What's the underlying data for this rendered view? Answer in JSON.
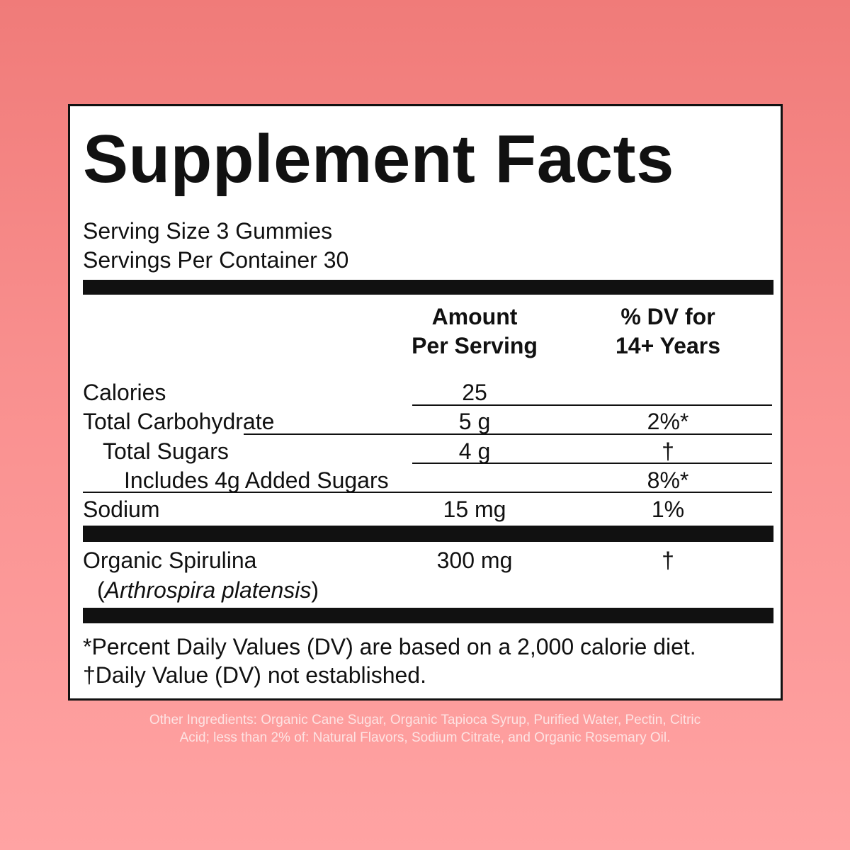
{
  "title": "Supplement Facts",
  "serving": [
    "Serving Size 3 Gummies",
    "Servings Per Container 30"
  ],
  "columns": {
    "amount": [
      "Amount",
      "Per Serving"
    ],
    "dv": [
      "% DV for",
      "14+ Years"
    ]
  },
  "rows": [
    {
      "name": "Calories",
      "amount": "25"
    },
    {
      "name": "Total Carbohydrate",
      "amount": "5 g",
      "dv": "2%*"
    },
    {
      "name": "Total Sugars",
      "amount": "4 g",
      "dv": "†"
    },
    {
      "name": "Includes 4g Added Sugars",
      "dv": "8%*"
    },
    {
      "name": "Sodium",
      "amount": "15 mg",
      "dv": "1%"
    }
  ],
  "ingredient": {
    "name": "Organic Spirulina",
    "source": [
      "(",
      "Arthrospira platensis",
      ")"
    ],
    "amount": "300 mg",
    "dv": "†"
  },
  "footnotes": [
    "*Percent Daily Values (DV) are based on a 2,000 calorie diet.",
    "†Daily Value (DV) not established."
  ],
  "other_ingredients": [
    "Other Ingredients: Organic Cane Sugar, Organic Tapioca Syrup, Purified Water, Pectin, Citric",
    "Acid; less than 2% of: Natural Flavors, Sodium Citrate, and Organic Rosemary Oil."
  ]
}
